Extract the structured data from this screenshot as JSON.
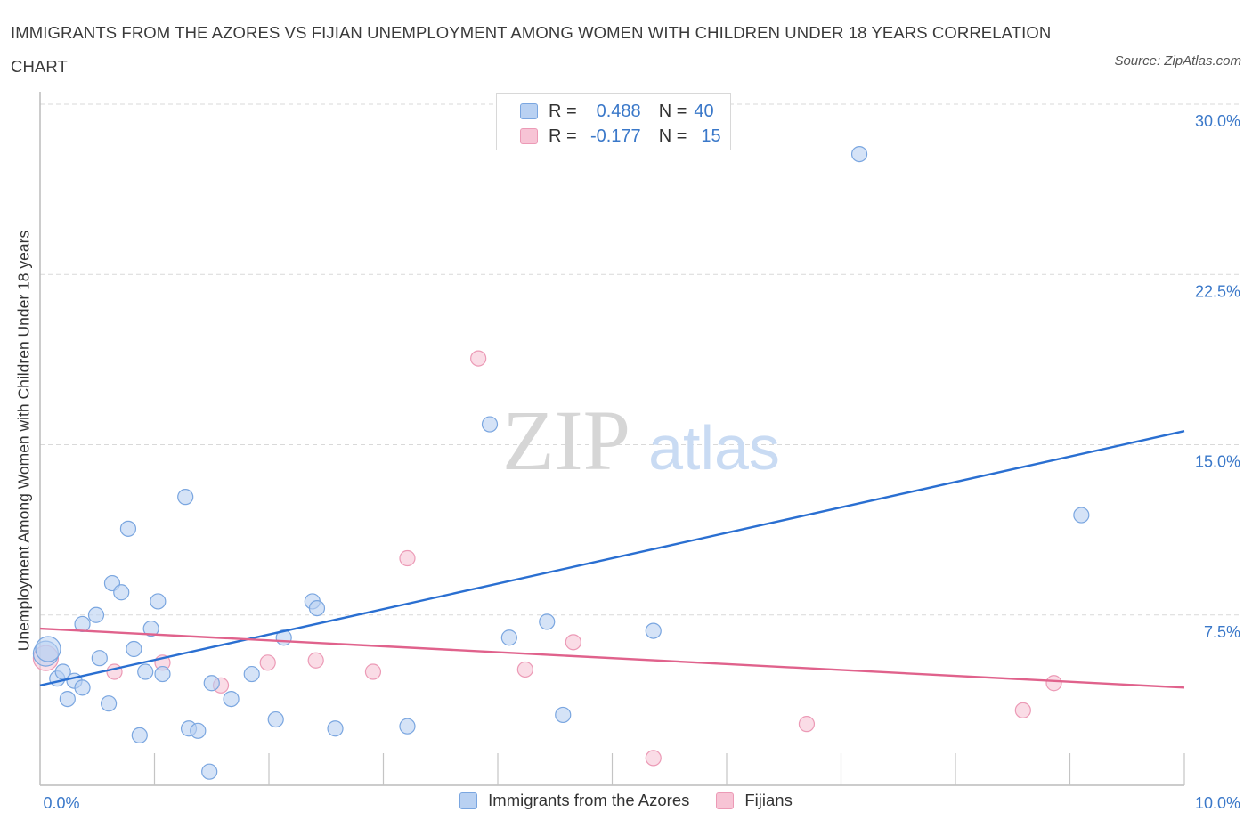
{
  "title": "IMMIGRANTS FROM THE AZORES VS FIJIAN UNEMPLOYMENT AMONG WOMEN WITH CHILDREN UNDER 18 YEARS CORRELATION CHART",
  "source": "Source: ZipAtlas.com",
  "watermark": {
    "zip": "ZIP",
    "atlas": "atlas"
  },
  "legend_top": [
    {
      "r_label": "R =",
      "r_value": "0.488",
      "n_label": "N =",
      "n_value": "40"
    },
    {
      "r_label": "R =",
      "r_value": "-0.177",
      "n_label": "N =",
      "n_value": "15"
    }
  ],
  "colors": {
    "blue_fill": "#b9d1f2",
    "blue_stroke": "#7aa6e0",
    "blue_line": "#2a6fd1",
    "pink_fill": "#f7c4d5",
    "pink_stroke": "#ec9ab6",
    "pink_line": "#e0628c",
    "grid": "#d9d9d9",
    "axis_text": "#3a78c9"
  },
  "chart_data": {
    "type": "scatter",
    "title": "IMMIGRANTS FROM THE AZORES VS FIJIAN UNEMPLOYMENT AMONG WOMEN WITH CHILDREN UNDER 18 YEARS CORRELATION CHART",
    "xlabel": "",
    "ylabel": "Unemployment Among Women with Children Under 18 years",
    "xlim": [
      0,
      10
    ],
    "ylim": [
      0,
      30
    ],
    "x_tick_labels": [
      "0.0%",
      "10.0%"
    ],
    "y_ticks": [
      7.5,
      15,
      22.5,
      30
    ],
    "y_tick_labels": [
      "7.5%",
      "15.0%",
      "22.5%",
      "30.0%"
    ],
    "x_minor_ticks": [
      0,
      1,
      2,
      3,
      4,
      5,
      6,
      7,
      8,
      9,
      10
    ],
    "series": [
      {
        "name": "Immigrants from the Azores",
        "color": "blue",
        "trend": {
          "x": [
            0,
            10
          ],
          "y": [
            4.4,
            15.6
          ]
        },
        "points": [
          {
            "x": 0.05,
            "y": 5.8
          },
          {
            "x": 0.15,
            "y": 4.7
          },
          {
            "x": 0.2,
            "y": 5.0
          },
          {
            "x": 0.24,
            "y": 3.8
          },
          {
            "x": 0.3,
            "y": 4.6
          },
          {
            "x": 0.37,
            "y": 4.3
          },
          {
            "x": 0.37,
            "y": 7.1
          },
          {
            "x": 0.49,
            "y": 7.5
          },
          {
            "x": 0.52,
            "y": 5.6
          },
          {
            "x": 0.6,
            "y": 3.6
          },
          {
            "x": 0.63,
            "y": 8.9
          },
          {
            "x": 0.71,
            "y": 8.5
          },
          {
            "x": 0.77,
            "y": 11.3
          },
          {
            "x": 0.82,
            "y": 6.0
          },
          {
            "x": 0.87,
            "y": 2.2
          },
          {
            "x": 0.92,
            "y": 5.0
          },
          {
            "x": 0.97,
            "y": 6.9
          },
          {
            "x": 1.03,
            "y": 8.1
          },
          {
            "x": 1.07,
            "y": 4.9
          },
          {
            "x": 1.27,
            "y": 12.7
          },
          {
            "x": 1.3,
            "y": 2.5
          },
          {
            "x": 1.38,
            "y": 2.4
          },
          {
            "x": 1.48,
            "y": 0.6
          },
          {
            "x": 1.5,
            "y": 4.5
          },
          {
            "x": 1.67,
            "y": 3.8
          },
          {
            "x": 1.85,
            "y": 4.9
          },
          {
            "x": 2.06,
            "y": 2.9
          },
          {
            "x": 2.13,
            "y": 6.5
          },
          {
            "x": 2.38,
            "y": 8.1
          },
          {
            "x": 2.42,
            "y": 7.8
          },
          {
            "x": 2.58,
            "y": 2.5
          },
          {
            "x": 3.21,
            "y": 2.6
          },
          {
            "x": 3.93,
            "y": 15.9
          },
          {
            "x": 4.1,
            "y": 6.5
          },
          {
            "x": 4.43,
            "y": 7.2
          },
          {
            "x": 4.57,
            "y": 3.1
          },
          {
            "x": 5.36,
            "y": 6.8
          },
          {
            "x": 7.16,
            "y": 27.8
          },
          {
            "x": 9.1,
            "y": 11.9
          },
          {
            "x": 0.07,
            "y": 6.0
          }
        ]
      },
      {
        "name": "Fijians",
        "color": "pink",
        "trend": {
          "x": [
            0,
            10
          ],
          "y": [
            6.9,
            4.3
          ]
        },
        "points": [
          {
            "x": 0.05,
            "y": 5.6
          },
          {
            "x": 0.65,
            "y": 5.0
          },
          {
            "x": 1.07,
            "y": 5.4
          },
          {
            "x": 1.58,
            "y": 4.4
          },
          {
            "x": 1.99,
            "y": 5.4
          },
          {
            "x": 2.41,
            "y": 5.5
          },
          {
            "x": 2.91,
            "y": 5.0
          },
          {
            "x": 3.21,
            "y": 10.0
          },
          {
            "x": 3.83,
            "y": 18.8
          },
          {
            "x": 4.24,
            "y": 5.1
          },
          {
            "x": 4.66,
            "y": 6.3
          },
          {
            "x": 5.36,
            "y": 1.2
          },
          {
            "x": 6.7,
            "y": 2.7
          },
          {
            "x": 8.59,
            "y": 3.3
          },
          {
            "x": 8.86,
            "y": 4.5
          }
        ]
      }
    ]
  },
  "legend_bottom": [
    "Immigrants from the Azores",
    "Fijians"
  ]
}
